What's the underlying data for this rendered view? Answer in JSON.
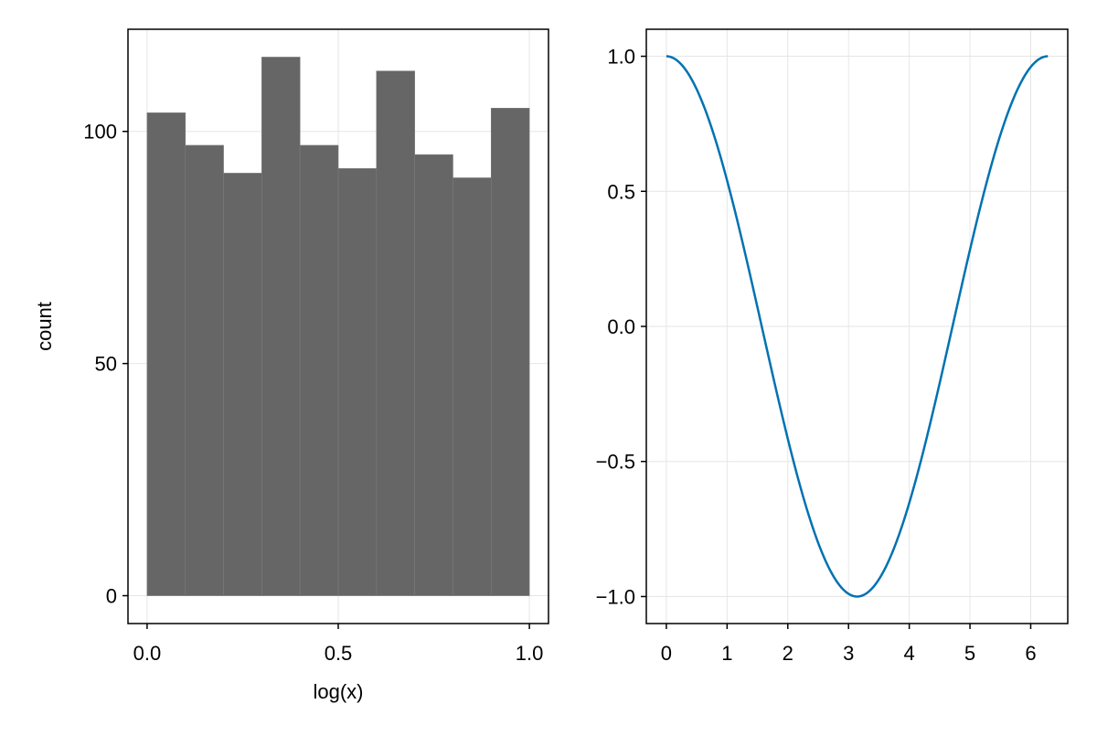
{
  "colors": {
    "bar_fill": "#666666",
    "bar_edge": "#7a7a7a",
    "line": "#0072b2",
    "grid": "#e6e6e6",
    "frame": "#000000",
    "background": "#ffffff"
  },
  "chart_data": [
    {
      "type": "bar",
      "subtype": "histogram",
      "title": "",
      "xlabel": "log(x)",
      "ylabel": "count",
      "bin_edges": [
        0.0,
        0.1,
        0.2,
        0.3,
        0.4,
        0.5,
        0.6,
        0.7,
        0.8,
        0.9,
        1.0
      ],
      "values": [
        104,
        97,
        91,
        116,
        97,
        92,
        113,
        95,
        90,
        105
      ],
      "xlim": [
        -0.05,
        1.05
      ],
      "ylim": [
        -6,
        122
      ],
      "xticks": [
        0.0,
        0.5,
        1.0
      ],
      "xtick_labels": [
        "0.0",
        "0.5",
        "1.0"
      ],
      "yticks": [
        0,
        50,
        100
      ],
      "ytick_labels": [
        "0",
        "50",
        "100"
      ],
      "grid": true
    },
    {
      "type": "line",
      "title": "",
      "xlabel": "",
      "ylabel": "",
      "function": "cos(x)",
      "x_range": [
        0,
        6.283
      ],
      "xlim": [
        -0.33,
        6.61
      ],
      "ylim": [
        -1.1,
        1.1
      ],
      "xticks": [
        0,
        1,
        2,
        3,
        4,
        5,
        6
      ],
      "xtick_labels": [
        "0",
        "1",
        "2",
        "3",
        "4",
        "5",
        "6"
      ],
      "yticks": [
        -1.0,
        -0.5,
        0.0,
        0.5,
        1.0
      ],
      "ytick_labels": [
        "−1.0",
        "−0.5",
        "0.0",
        "0.5",
        "1.0"
      ],
      "grid": true
    }
  ]
}
